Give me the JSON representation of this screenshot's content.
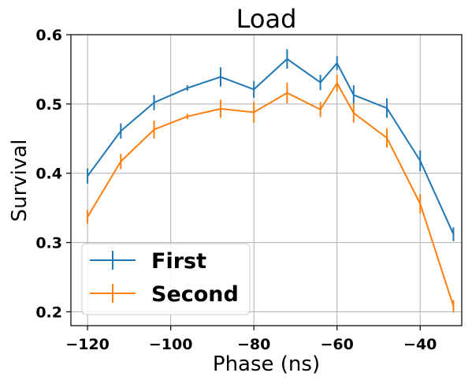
{
  "chart_data": {
    "type": "line",
    "title": "Load",
    "xlabel": "Phase (ns)",
    "ylabel": "Survival",
    "xlim": [
      -124,
      -30
    ],
    "ylim": [
      0.18,
      0.6
    ],
    "xticks": [
      -120,
      -100,
      -80,
      -60,
      -40
    ],
    "xtick_labels": [
      "−120",
      "−100",
      "−80",
      "−60",
      "−40"
    ],
    "yticks": [
      0.2,
      0.3,
      0.4,
      0.5,
      0.6
    ],
    "ytick_labels": [
      "0.2",
      "0.3",
      "0.4",
      "0.5",
      "0.6"
    ],
    "grid": true,
    "legend_position": "bottom-left",
    "x": [
      -120,
      -112,
      -104,
      -96,
      -88,
      -80,
      -72,
      -64,
      -60,
      -56,
      -48,
      -40,
      -32
    ],
    "series": [
      {
        "name": "First",
        "color": "#1f77b4",
        "values": [
          0.396,
          0.461,
          0.502,
          0.523,
          0.539,
          0.521,
          0.565,
          0.531,
          0.559,
          0.513,
          0.494,
          0.418,
          0.312
        ],
        "errors": [
          0.011,
          0.011,
          0.011,
          0.004,
          0.014,
          0.012,
          0.014,
          0.011,
          0.01,
          0.014,
          0.014,
          0.015,
          0.01
        ]
      },
      {
        "name": "Second",
        "color": "#ff7f0e",
        "values": [
          0.337,
          0.417,
          0.463,
          0.482,
          0.493,
          0.488,
          0.516,
          0.492,
          0.53,
          0.487,
          0.451,
          0.356,
          0.208
        ],
        "errors": [
          0.01,
          0.011,
          0.013,
          0.004,
          0.013,
          0.015,
          0.015,
          0.011,
          0.012,
          0.014,
          0.014,
          0.014,
          0.009
        ]
      }
    ]
  }
}
